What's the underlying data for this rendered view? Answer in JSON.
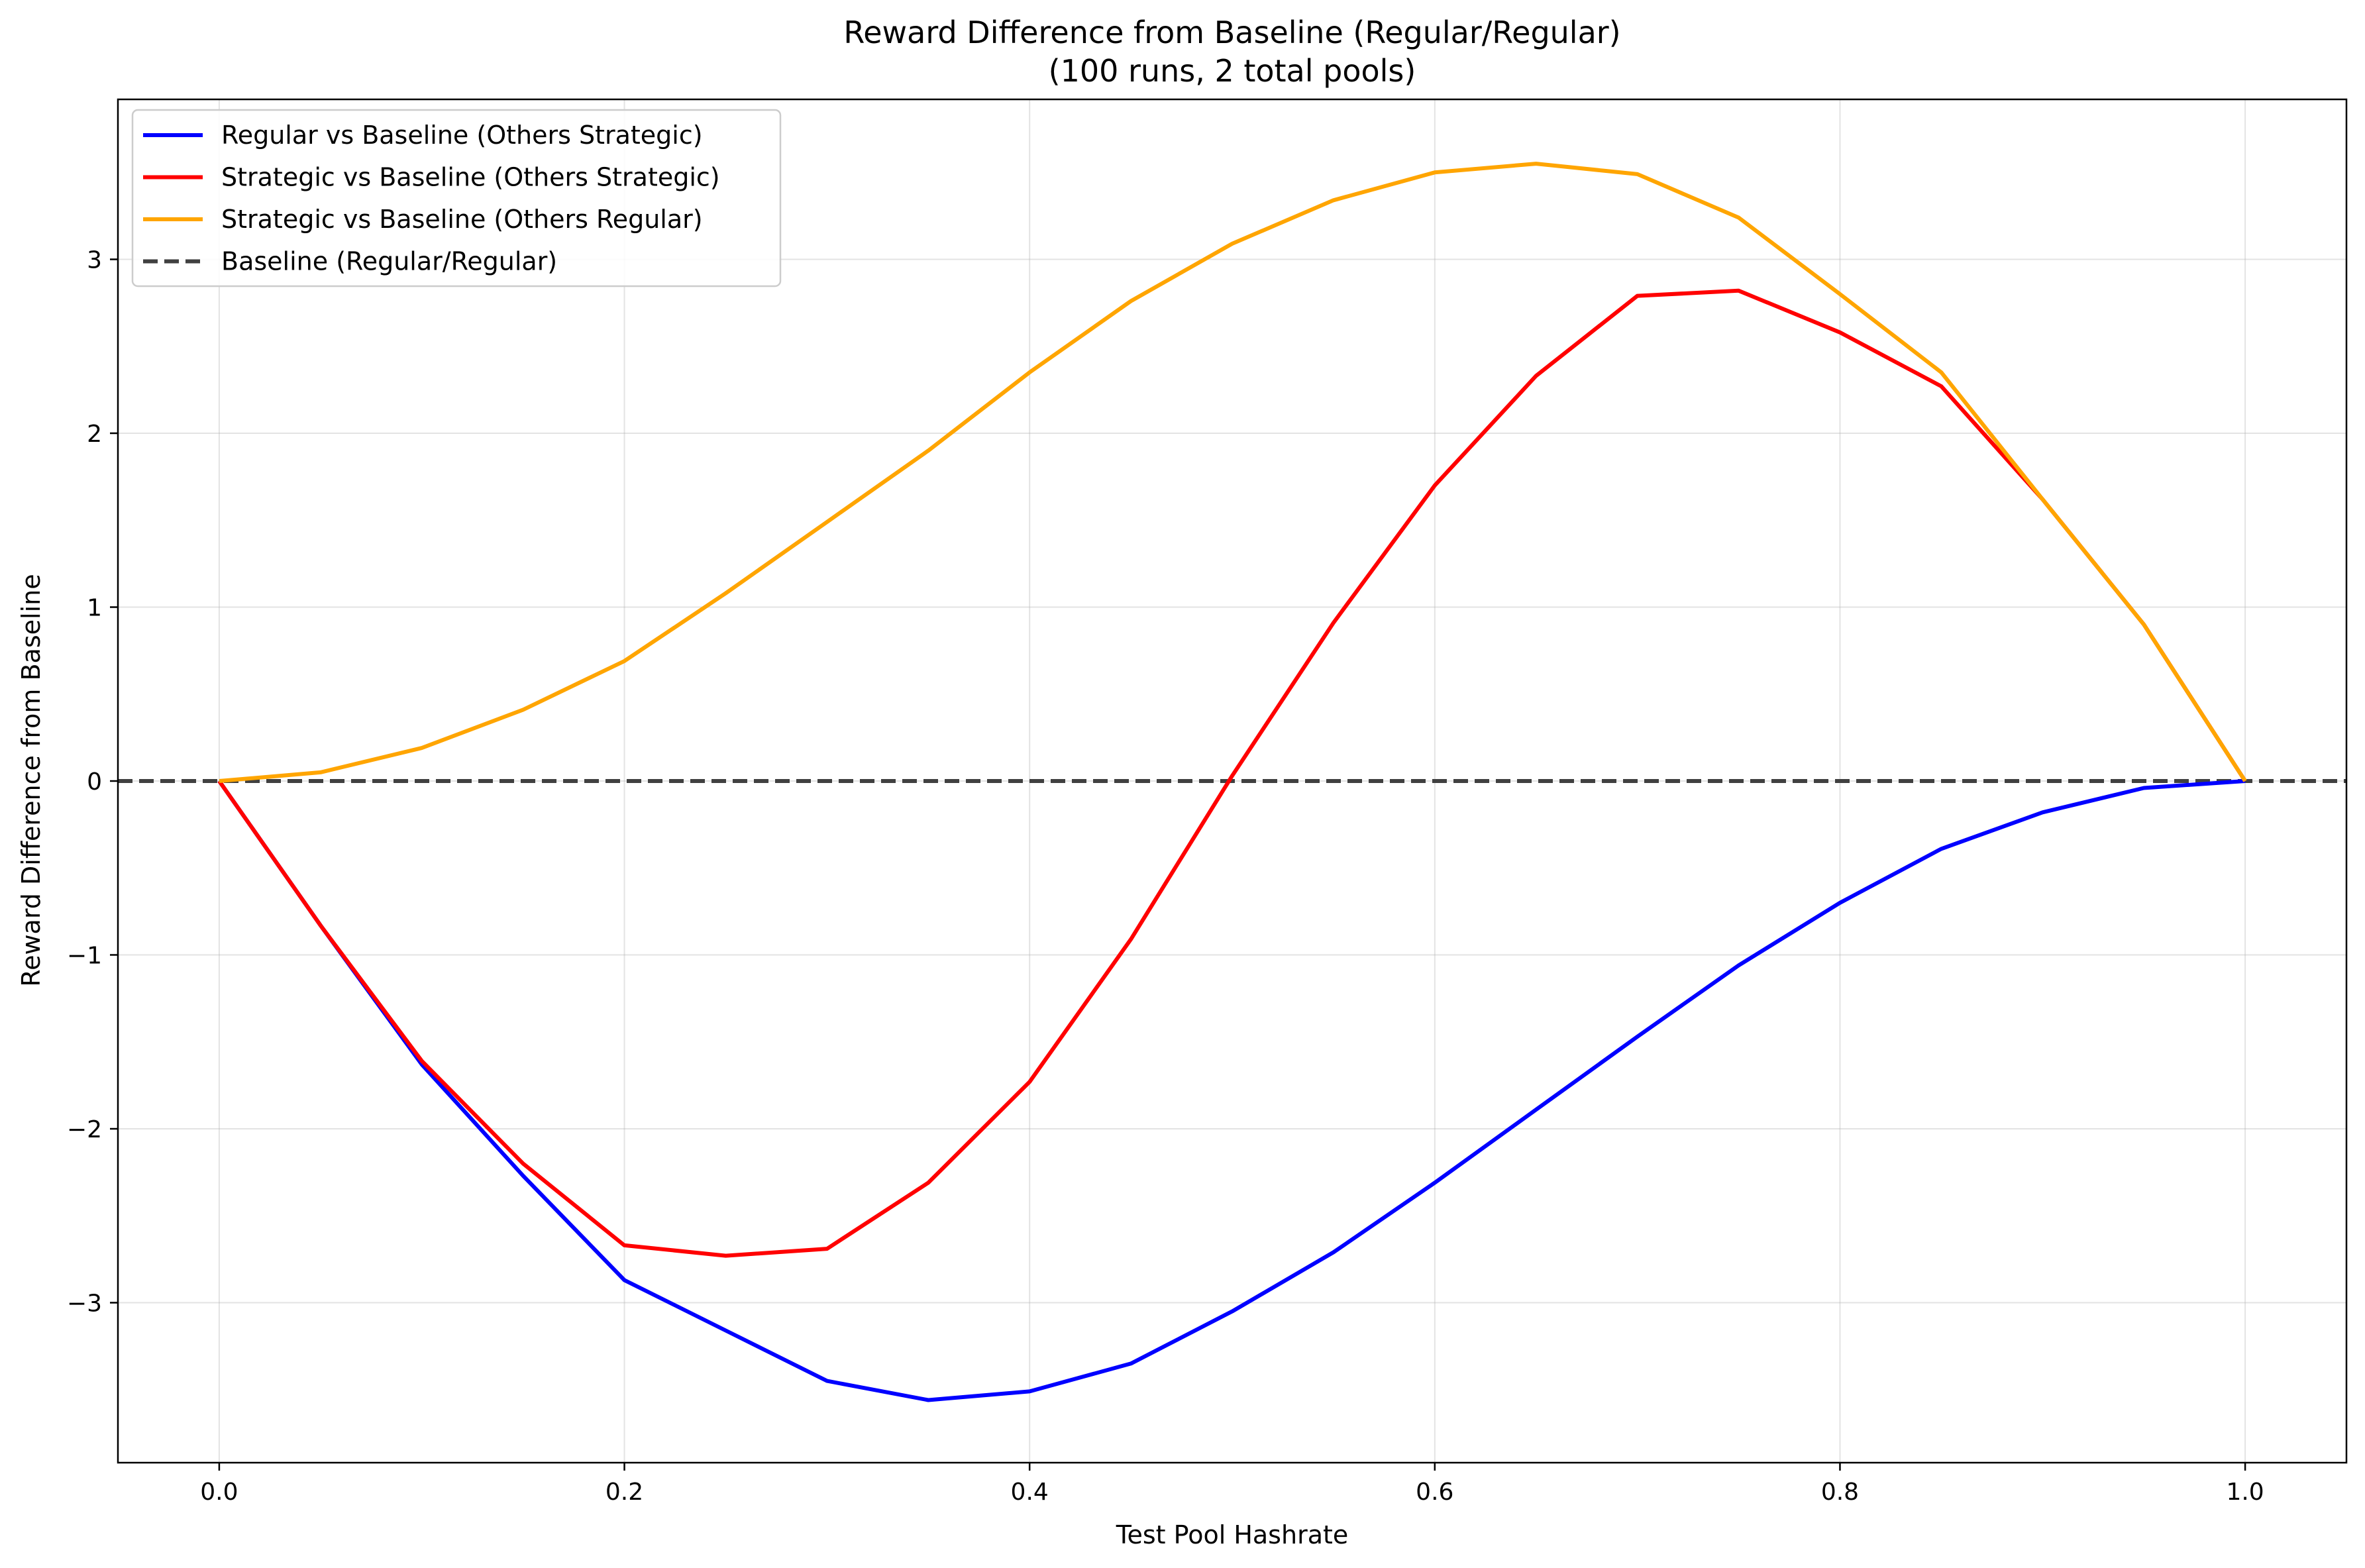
{
  "chart_data": {
    "type": "line",
    "title": "Reward Difference from Baseline (Regular/Regular)",
    "subtitle": "(100 runs, 2 total pools)",
    "xlabel": "Test Pool Hashrate",
    "ylabel": "Reward Difference from Baseline",
    "xlim": [
      -0.05,
      1.05
    ],
    "ylim": [
      -3.92,
      3.92
    ],
    "x_ticks": [
      0.0,
      0.2,
      0.4,
      0.6,
      0.8,
      1.0
    ],
    "x_tick_labels": [
      "0.0",
      "0.2",
      "0.4",
      "0.6",
      "0.8",
      "1.0"
    ],
    "y_ticks": [
      -3,
      -2,
      -1,
      0,
      1,
      2,
      3
    ],
    "y_tick_labels": [
      "−3",
      "−2",
      "−1",
      "0",
      "1",
      "2",
      "3"
    ],
    "grid": true,
    "legend_position": "top-left",
    "x": [
      0.0,
      0.05,
      0.1,
      0.15,
      0.2,
      0.25,
      0.3,
      0.35,
      0.4,
      0.45,
      0.5,
      0.55,
      0.6,
      0.65,
      0.7,
      0.75,
      0.8,
      0.85,
      0.9,
      0.95,
      1.0
    ],
    "series": [
      {
        "name": "Regular vs Baseline (Others Strategic)",
        "color": "#0000ff",
        "dash": "solid",
        "values": [
          0.0,
          -0.83,
          -1.63,
          -2.27,
          -2.87,
          -3.16,
          -3.45,
          -3.56,
          -3.51,
          -3.35,
          -3.05,
          -2.71,
          -2.31,
          -1.89,
          -1.47,
          -1.06,
          -0.7,
          -0.39,
          -0.18,
          -0.04,
          0.0
        ]
      },
      {
        "name": "Strategic vs Baseline (Others Strategic)",
        "color": "#ff0000",
        "dash": "solid",
        "values": [
          0.0,
          -0.83,
          -1.61,
          -2.2,
          -2.67,
          -2.73,
          -2.69,
          -2.31,
          -1.73,
          -0.91,
          0.03,
          0.91,
          1.7,
          2.33,
          2.79,
          2.82,
          2.58,
          2.27,
          1.62,
          0.9,
          0.0
        ]
      },
      {
        "name": "Strategic vs Baseline (Others Regular)",
        "color": "#ffa500",
        "dash": "solid",
        "values": [
          0.0,
          0.05,
          0.19,
          0.41,
          0.69,
          1.08,
          1.49,
          1.9,
          2.35,
          2.76,
          3.09,
          3.34,
          3.5,
          3.55,
          3.49,
          3.24,
          2.8,
          2.35,
          1.62,
          0.9,
          0.0
        ]
      },
      {
        "name": "Baseline (Regular/Regular)",
        "color": "#404040",
        "dash": "dashed",
        "values": [
          0.0,
          0.0,
          0.0,
          0.0,
          0.0,
          0.0,
          0.0,
          0.0,
          0.0,
          0.0,
          0.0,
          0.0,
          0.0,
          0.0,
          0.0,
          0.0,
          0.0,
          0.0,
          0.0,
          0.0,
          0.0
        ]
      }
    ]
  }
}
